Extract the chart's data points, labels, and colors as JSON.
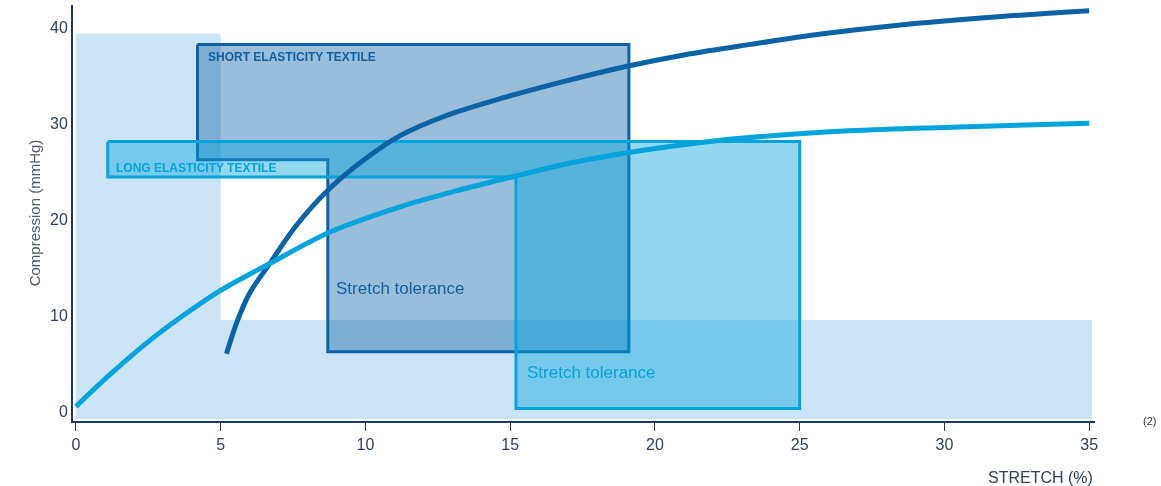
{
  "chart_data": {
    "type": "line",
    "xlabel": "STRETCH (%)",
    "ylabel": "Compression (mmHg)",
    "xlim": [
      -0.1,
      35.2
    ],
    "ylim": [
      -1.0,
      42.3
    ],
    "xticks": [
      0,
      5,
      10,
      15,
      20,
      25,
      30,
      35
    ],
    "yticks": [
      0,
      10,
      20,
      30,
      40
    ],
    "series": [
      {
        "type": "area",
        "color": "#7fbde9",
        "x": [
          0,
          5,
          5,
          35.1,
          35.1,
          0
        ],
        "values": [
          39.3,
          39.3,
          9.5,
          9.5,
          -0.8,
          -0.8
        ]
      },
      {
        "type": "area",
        "color": "#0e62a4",
        "x": [
          4.2,
          19.1,
          19.1,
          8.7,
          8.7,
          4.2
        ],
        "values": [
          38.2,
          38.2,
          6.2,
          6.2,
          26.2,
          26.2
        ]
      },
      {
        "type": "area",
        "color": "#00a3dc",
        "x": [
          1.1,
          25.0,
          25.0,
          15.2,
          15.2,
          1.1
        ],
        "values": [
          28.1,
          28.1,
          0.3,
          0.3,
          24.4,
          24.4
        ]
      },
      {
        "color": "#0b62a4",
        "x": [
          5.2,
          5.6,
          6.0,
          6.7,
          7.6,
          8.8,
          10.0,
          11.2,
          12.8,
          14.6,
          16.8,
          19.0,
          21.0,
          23.3,
          25.8,
          28.4,
          31.5,
          35.0
        ],
        "values": [
          6.0,
          9.6,
          12.3,
          15.4,
          19.3,
          23.3,
          26.3,
          28.7,
          30.8,
          32.5,
          34.3,
          35.9,
          37.1,
          38.2,
          39.3,
          40.2,
          41.0,
          41.7
        ]
      },
      {
        "color": "#00a3dc",
        "x": [
          0,
          1.2,
          2.6,
          4.0,
          5.0,
          6.7,
          8.8,
          11.2,
          13.2,
          15.2,
          17.0,
          19.0,
          22.2,
          26.7,
          30.5,
          35.0
        ],
        "values": [
          0.5,
          3.9,
          7.5,
          10.6,
          12.6,
          15.4,
          18.7,
          21.3,
          23.0,
          24.5,
          25.8,
          26.9,
          28.2,
          29.2,
          29.6,
          30.0
        ]
      }
    ],
    "annotations": [
      "SHORT ELASTICITY TEXTILE",
      "LONG ELASTICITY TEXTILE",
      "Stretch tolerance",
      "Stretch tolerance",
      "(2)"
    ]
  }
}
